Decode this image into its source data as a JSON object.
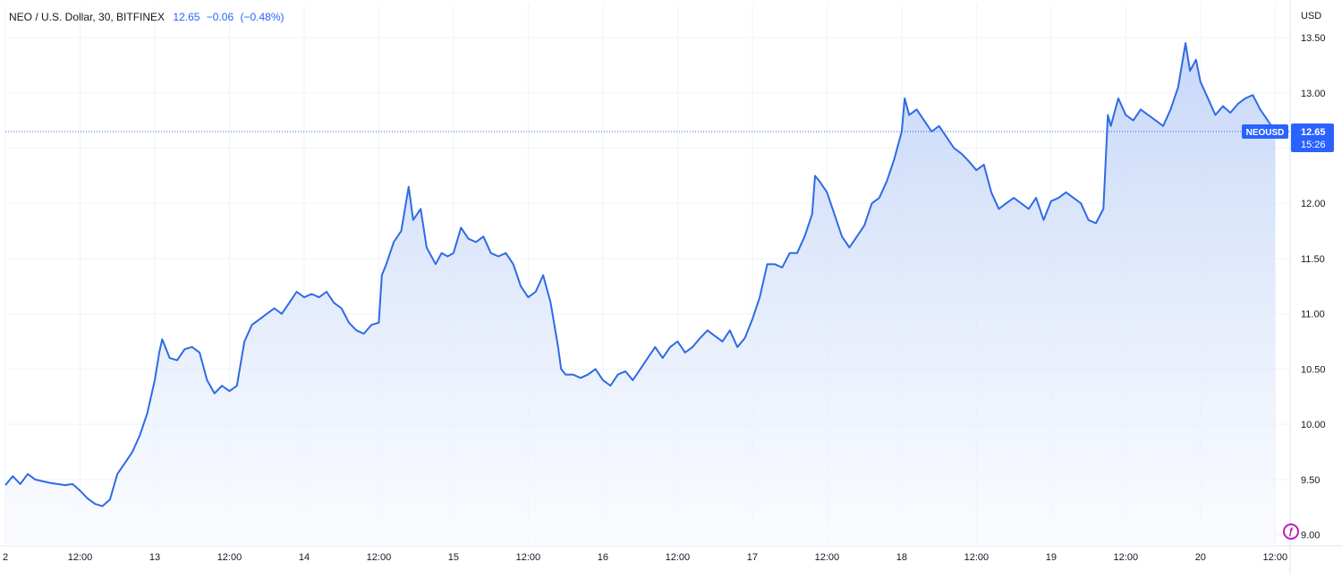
{
  "legend": {
    "symbol": "NEO / U.S. Dollar, 30, BITFINEX",
    "last": "12.65",
    "change": "−0.06",
    "change_pct": "(−0.48%)"
  },
  "axis": {
    "currency": "USD"
  },
  "price_label": {
    "ticker": "NEOUSD",
    "price": "12.65",
    "countdown": "15:26"
  },
  "colors": {
    "line": "#2e6be6",
    "area_top": "#bcd0f7",
    "area_bottom": "#f7f9fe",
    "badge": "#2962ff",
    "grid": "#f0f3fa"
  },
  "chart_data": {
    "type": "area",
    "ylim": [
      8.9,
      13.8
    ],
    "yticks": [
      "9.00",
      "9.50",
      "10.00",
      "10.50",
      "11.00",
      "11.50",
      "12.00",
      "12.50",
      "13.00",
      "13.50"
    ],
    "xticks": [
      "2",
      "12:00",
      "13",
      "12:00",
      "14",
      "12:00",
      "15",
      "12:00",
      "16",
      "12:00",
      "17",
      "12:00",
      "18",
      "12:00",
      "19",
      "12:00",
      "20",
      "12:00"
    ],
    "x_range": [
      0,
      8.6
    ],
    "last_value": 12.65,
    "grid": true,
    "legend": "top-left",
    "series": [
      {
        "values": [
          [
            0.0,
            9.45
          ],
          [
            0.05,
            9.53
          ],
          [
            0.1,
            9.46
          ],
          [
            0.15,
            9.55
          ],
          [
            0.2,
            9.5
          ],
          [
            0.3,
            9.47
          ],
          [
            0.4,
            9.45
          ],
          [
            0.45,
            9.46
          ],
          [
            0.5,
            9.4
          ],
          [
            0.55,
            9.33
          ],
          [
            0.6,
            9.28
          ],
          [
            0.65,
            9.26
          ],
          [
            0.7,
            9.32
          ],
          [
            0.75,
            9.55
          ],
          [
            0.8,
            9.65
          ],
          [
            0.85,
            9.75
          ],
          [
            0.9,
            9.9
          ],
          [
            0.95,
            10.1
          ],
          [
            1.0,
            10.4
          ],
          [
            1.03,
            10.65
          ],
          [
            1.05,
            10.77
          ],
          [
            1.1,
            10.6
          ],
          [
            1.15,
            10.58
          ],
          [
            1.2,
            10.68
          ],
          [
            1.25,
            10.7
          ],
          [
            1.3,
            10.65
          ],
          [
            1.35,
            10.4
          ],
          [
            1.4,
            10.28
          ],
          [
            1.45,
            10.35
          ],
          [
            1.5,
            10.3
          ],
          [
            1.55,
            10.35
          ],
          [
            1.6,
            10.75
          ],
          [
            1.65,
            10.9
          ],
          [
            1.7,
            10.95
          ],
          [
            1.75,
            11.0
          ],
          [
            1.8,
            11.05
          ],
          [
            1.85,
            11.0
          ],
          [
            1.9,
            11.1
          ],
          [
            1.95,
            11.2
          ],
          [
            2.0,
            11.15
          ],
          [
            2.05,
            11.18
          ],
          [
            2.1,
            11.15
          ],
          [
            2.15,
            11.2
          ],
          [
            2.2,
            11.1
          ],
          [
            2.25,
            11.05
          ],
          [
            2.3,
            10.92
          ],
          [
            2.35,
            10.85
          ],
          [
            2.4,
            10.82
          ],
          [
            2.45,
            10.9
          ],
          [
            2.5,
            10.92
          ],
          [
            2.52,
            11.35
          ],
          [
            2.55,
            11.45
          ],
          [
            2.6,
            11.65
          ],
          [
            2.65,
            11.75
          ],
          [
            2.7,
            12.15
          ],
          [
            2.73,
            11.85
          ],
          [
            2.78,
            11.95
          ],
          [
            2.82,
            11.6
          ],
          [
            2.88,
            11.45
          ],
          [
            2.92,
            11.55
          ],
          [
            2.96,
            11.52
          ],
          [
            3.0,
            11.55
          ],
          [
            3.05,
            11.78
          ],
          [
            3.1,
            11.68
          ],
          [
            3.15,
            11.65
          ],
          [
            3.2,
            11.7
          ],
          [
            3.25,
            11.55
          ],
          [
            3.3,
            11.52
          ],
          [
            3.35,
            11.55
          ],
          [
            3.4,
            11.45
          ],
          [
            3.45,
            11.25
          ],
          [
            3.5,
            11.15
          ],
          [
            3.55,
            11.2
          ],
          [
            3.6,
            11.35
          ],
          [
            3.65,
            11.1
          ],
          [
            3.7,
            10.7
          ],
          [
            3.72,
            10.5
          ],
          [
            3.75,
            10.45
          ],
          [
            3.8,
            10.45
          ],
          [
            3.85,
            10.42
          ],
          [
            3.9,
            10.45
          ],
          [
            3.95,
            10.5
          ],
          [
            4.0,
            10.4
          ],
          [
            4.05,
            10.35
          ],
          [
            4.1,
            10.45
          ],
          [
            4.15,
            10.48
          ],
          [
            4.2,
            10.4
          ],
          [
            4.25,
            10.5
          ],
          [
            4.3,
            10.6
          ],
          [
            4.35,
            10.7
          ],
          [
            4.4,
            10.6
          ],
          [
            4.45,
            10.7
          ],
          [
            4.5,
            10.75
          ],
          [
            4.55,
            10.65
          ],
          [
            4.6,
            10.7
          ],
          [
            4.65,
            10.78
          ],
          [
            4.7,
            10.85
          ],
          [
            4.75,
            10.8
          ],
          [
            4.8,
            10.75
          ],
          [
            4.85,
            10.85
          ],
          [
            4.9,
            10.7
          ],
          [
            4.95,
            10.78
          ],
          [
            5.0,
            10.95
          ],
          [
            5.05,
            11.15
          ],
          [
            5.1,
            11.45
          ],
          [
            5.15,
            11.45
          ],
          [
            5.2,
            11.42
          ],
          [
            5.25,
            11.55
          ],
          [
            5.3,
            11.55
          ],
          [
            5.35,
            11.7
          ],
          [
            5.4,
            11.9
          ],
          [
            5.42,
            12.25
          ],
          [
            5.45,
            12.2
          ],
          [
            5.5,
            12.1
          ],
          [
            5.55,
            11.9
          ],
          [
            5.6,
            11.7
          ],
          [
            5.65,
            11.6
          ],
          [
            5.7,
            11.7
          ],
          [
            5.75,
            11.8
          ],
          [
            5.8,
            12.0
          ],
          [
            5.85,
            12.05
          ],
          [
            5.9,
            12.2
          ],
          [
            5.95,
            12.4
          ],
          [
            6.0,
            12.65
          ],
          [
            6.02,
            12.95
          ],
          [
            6.05,
            12.8
          ],
          [
            6.1,
            12.85
          ],
          [
            6.15,
            12.75
          ],
          [
            6.2,
            12.65
          ],
          [
            6.25,
            12.7
          ],
          [
            6.3,
            12.6
          ],
          [
            6.35,
            12.5
          ],
          [
            6.4,
            12.45
          ],
          [
            6.45,
            12.38
          ],
          [
            6.5,
            12.3
          ],
          [
            6.55,
            12.35
          ],
          [
            6.6,
            12.1
          ],
          [
            6.65,
            11.95
          ],
          [
            6.7,
            12.0
          ],
          [
            6.75,
            12.05
          ],
          [
            6.8,
            12.0
          ],
          [
            6.85,
            11.95
          ],
          [
            6.9,
            12.05
          ],
          [
            6.95,
            11.85
          ],
          [
            7.0,
            12.02
          ],
          [
            7.05,
            12.05
          ],
          [
            7.1,
            12.1
          ],
          [
            7.15,
            12.05
          ],
          [
            7.2,
            12.0
          ],
          [
            7.25,
            11.85
          ],
          [
            7.3,
            11.82
          ],
          [
            7.35,
            11.95
          ],
          [
            7.38,
            12.8
          ],
          [
            7.4,
            12.7
          ],
          [
            7.45,
            12.95
          ],
          [
            7.5,
            12.8
          ],
          [
            7.55,
            12.75
          ],
          [
            7.6,
            12.85
          ],
          [
            7.65,
            12.8
          ],
          [
            7.7,
            12.75
          ],
          [
            7.75,
            12.7
          ],
          [
            7.8,
            12.85
          ],
          [
            7.85,
            13.05
          ],
          [
            7.9,
            13.45
          ],
          [
            7.93,
            13.2
          ],
          [
            7.97,
            13.3
          ],
          [
            8.0,
            13.1
          ],
          [
            8.05,
            12.95
          ],
          [
            8.1,
            12.8
          ],
          [
            8.15,
            12.88
          ],
          [
            8.2,
            12.82
          ],
          [
            8.25,
            12.9
          ],
          [
            8.3,
            12.95
          ],
          [
            8.35,
            12.98
          ],
          [
            8.4,
            12.85
          ],
          [
            8.45,
            12.75
          ],
          [
            8.5,
            12.65
          ]
        ]
      }
    ]
  }
}
